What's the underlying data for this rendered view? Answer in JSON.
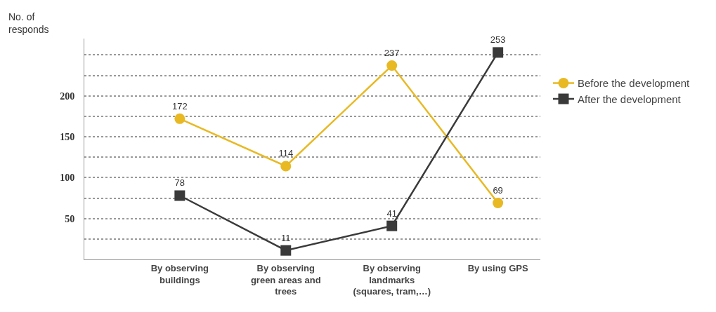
{
  "chart_data": {
    "type": "line",
    "ylabel": "No. of responds",
    "categories": [
      "By observing buildings",
      "By observing green areas and trees",
      "By observing landmarks (squares, tram,…)",
      "By using GPS"
    ],
    "series": [
      {
        "name": "Before the development",
        "color": "#e8b923",
        "marker": "circle",
        "values": [
          172,
          114,
          237,
          69
        ]
      },
      {
        "name": "After the development",
        "color": "#3a3a3a",
        "marker": "square",
        "values": [
          78,
          11,
          41,
          253
        ]
      }
    ],
    "ylim": [
      0,
      270
    ],
    "yticks": [
      {
        "value": 25,
        "label": null
      },
      50,
      {
        "value": 75,
        "label": null
      },
      100,
      {
        "value": 125,
        "label": null
      },
      150,
      {
        "value": 175,
        "label": null
      },
      200,
      {
        "value": 225,
        "label": null
      },
      {
        "value": 250,
        "label": null
      }
    ],
    "grid": "y",
    "legend": "right",
    "data_labels": true,
    "line_style": "solid"
  }
}
